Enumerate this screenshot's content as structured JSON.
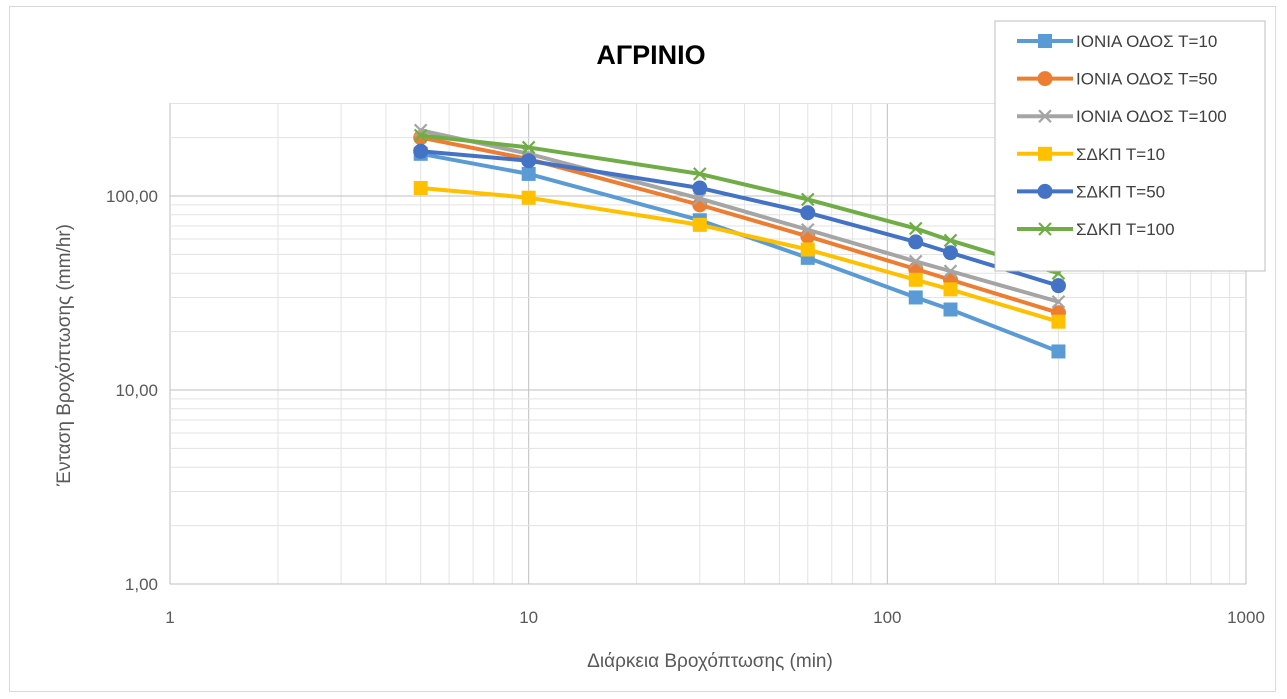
{
  "chart_data": {
    "type": "line",
    "title": "ΑΓΡΙΝΙΟ",
    "xlabel": "Διάρκεια Βροχόπτωσης (min)",
    "ylabel": "Ένταση Βροχόπτωσης (mm/hr)",
    "x_scale": "log",
    "y_scale": "log",
    "xlim": [
      1,
      1000
    ],
    "ylim": [
      1,
      300
    ],
    "x_ticks": [
      "1",
      "10",
      "100",
      "1000"
    ],
    "y_ticks": [
      "1,00",
      "10,00",
      "100,00"
    ],
    "grid": true,
    "legend_position": "top-right",
    "x": [
      5,
      10,
      30,
      60,
      120,
      150,
      300
    ],
    "series": [
      {
        "name": "ΙΟΝΙΑ ΟΔΟΣ Τ=10",
        "color": "#5b9bd5",
        "marker": "square",
        "values": [
          165,
          130,
          75,
          48,
          30,
          26,
          15.8
        ]
      },
      {
        "name": "ΙΟΝΙΑ ΟΔΟΣ Τ=50",
        "color": "#ed7d31",
        "marker": "circle",
        "values": [
          200,
          155,
          90,
          62,
          42,
          37,
          25
        ]
      },
      {
        "name": "ΙΟΝΙΑ ΟΔΟΣ Τ=100",
        "color": "#a5a5a5",
        "marker": "x",
        "values": [
          218,
          165,
          97,
          67,
          46,
          41,
          28.5
        ]
      },
      {
        "name": "ΣΔΚΠ Τ=10",
        "color": "#ffc000",
        "marker": "square",
        "values": [
          110,
          98,
          71,
          53,
          37,
          33,
          22.5
        ]
      },
      {
        "name": "ΣΔΚΠ Τ=50",
        "color": "#4472c4",
        "marker": "circle",
        "values": [
          170,
          152,
          110,
          82,
          58,
          51,
          34.5
        ]
      },
      {
        "name": "ΣΔΚΠ Τ=100",
        "color": "#70ad47",
        "marker": "x",
        "values": [
          205,
          178,
          130,
          96,
          68,
          59,
          40
        ]
      }
    ]
  }
}
